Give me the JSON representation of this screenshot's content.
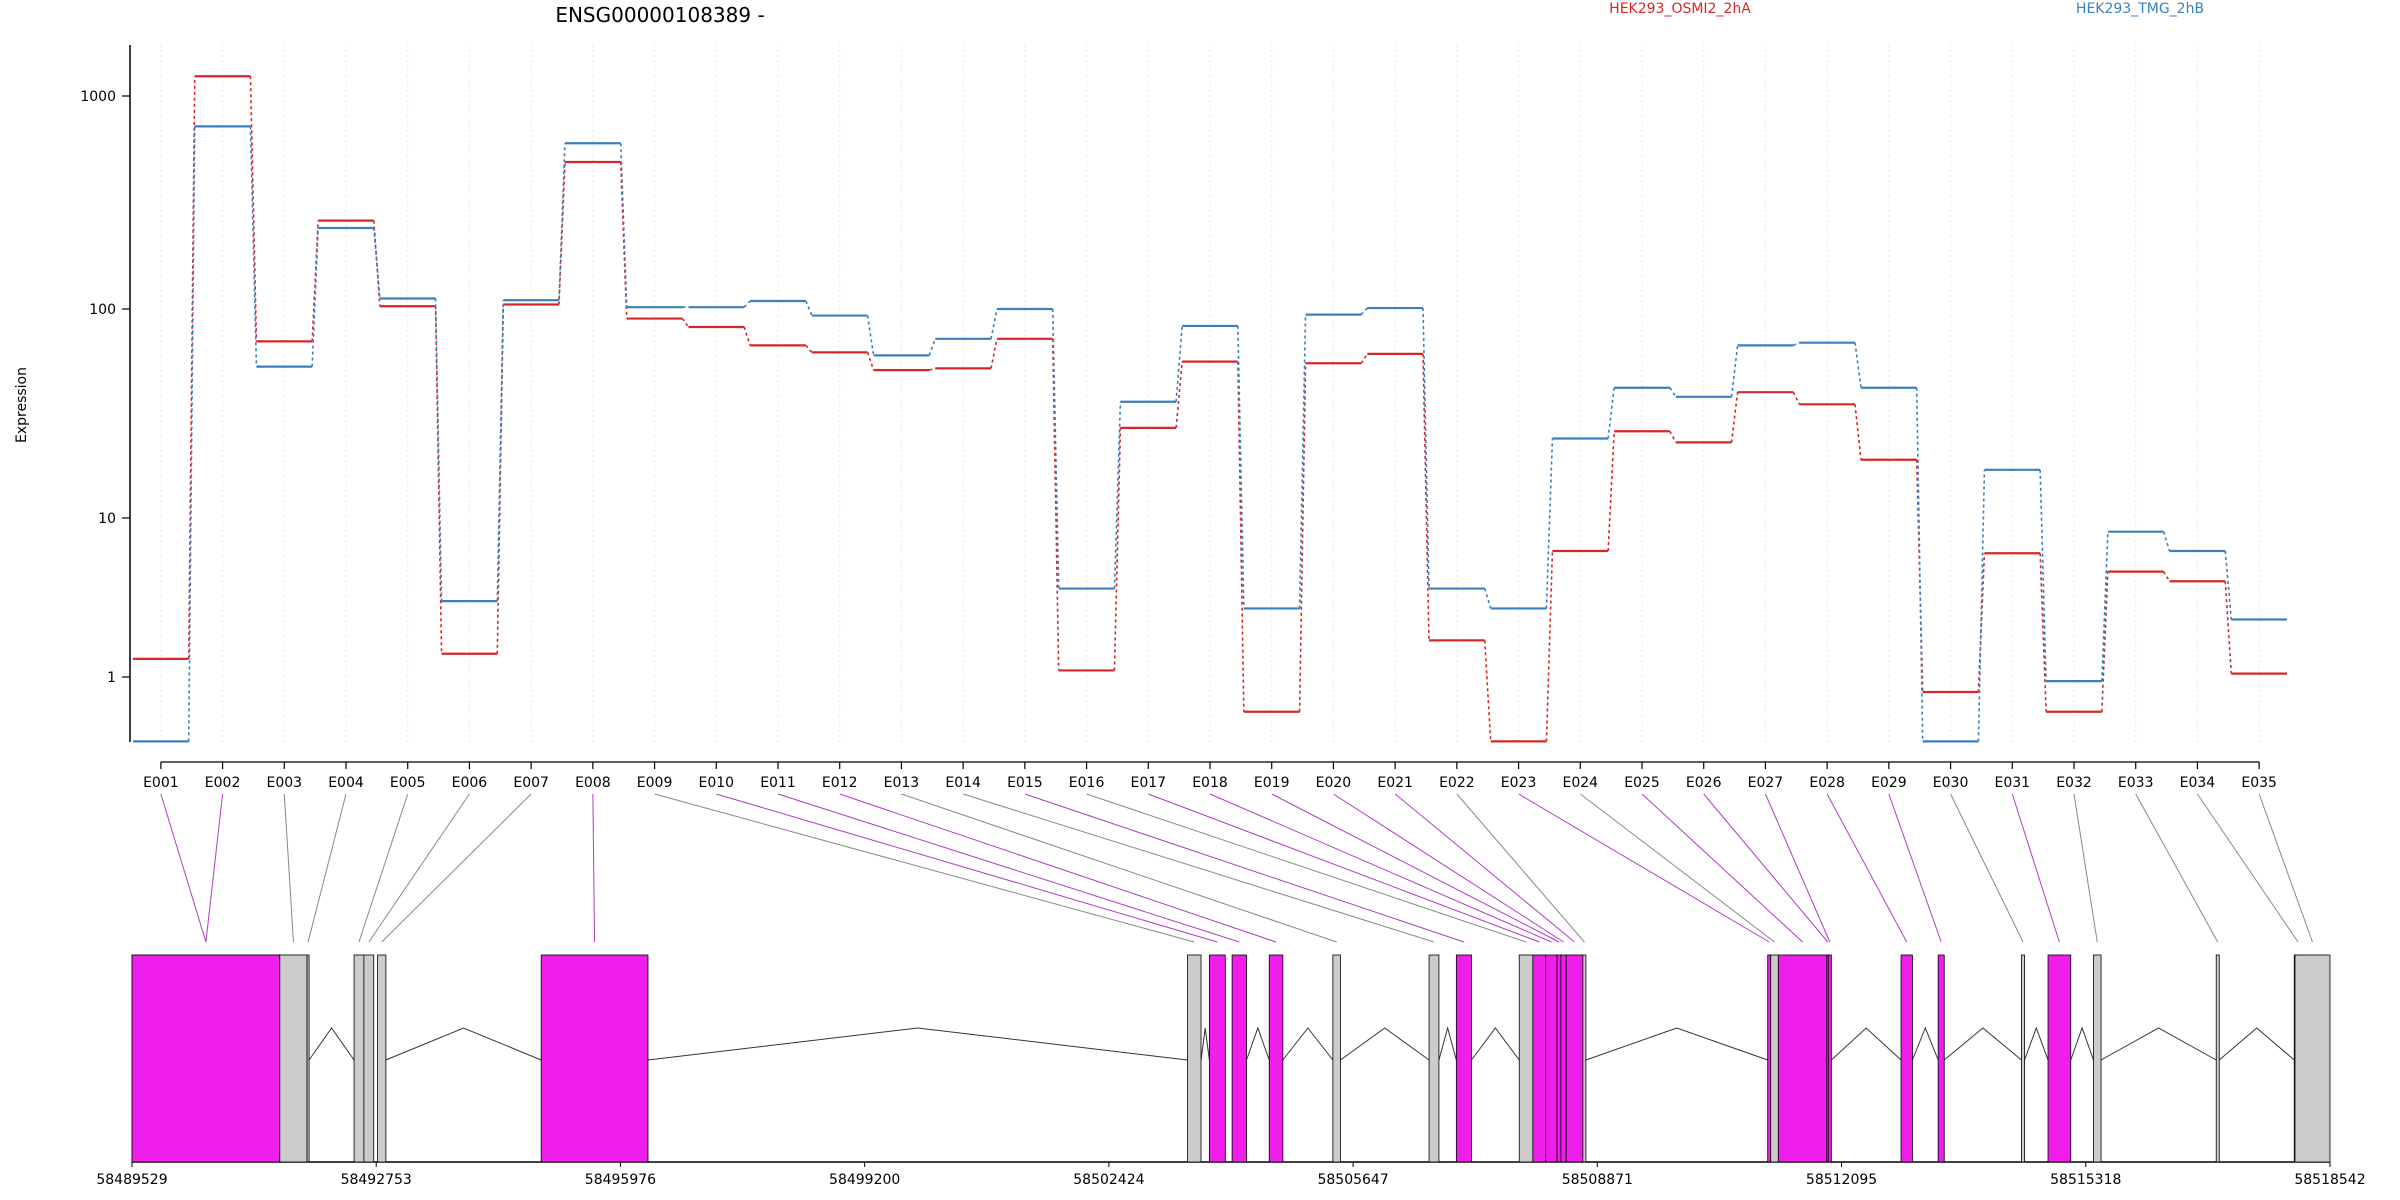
{
  "chart_data": {
    "type": "line",
    "title": "ENSG00000108389 -",
    "ylabel": "Expression",
    "y_scale": "log",
    "y_ticks": [
      "1",
      "10",
      "100",
      "1000"
    ],
    "x_scale": "categorical",
    "grid": "vertical dotted lines at each exon",
    "legend_placement": "top",
    "categories": [
      "E001",
      "E002",
      "E003",
      "E004",
      "E005",
      "E006",
      "E007",
      "E008",
      "E009",
      "E010",
      "E011",
      "E012",
      "E013",
      "E014",
      "E015",
      "E016",
      "E017",
      "E018",
      "E019",
      "E020",
      "E021",
      "E022",
      "E023",
      "E024",
      "E025",
      "E026",
      "E027",
      "E028",
      "E029",
      "E030",
      "E031",
      "E032",
      "E033",
      "E034",
      "E035"
    ],
    "series": [
      {
        "name": "HEK293_OSMI2_2hA",
        "color": "#d62728",
        "values": [
          1.3,
          1300,
          70,
          260,
          103,
          1.4,
          105,
          490,
          90,
          82,
          67,
          62,
          51,
          52,
          72,
          1.1,
          27,
          56,
          0.65,
          55,
          61,
          1.7,
          0.45,
          6.2,
          26,
          23,
          40,
          35,
          19,
          0.83,
          6.0,
          0.65,
          4.6,
          4.0,
          1.05
        ]
      },
      {
        "name": "HEK293_TMG_2hB",
        "color": "#3a7fbf",
        "values": [
          0.45,
          720,
          53,
          240,
          112,
          3.0,
          110,
          600,
          102,
          102,
          109,
          93,
          60,
          72,
          100,
          3.6,
          36,
          83,
          2.7,
          94,
          101,
          3.6,
          2.7,
          24,
          42,
          38,
          67,
          69,
          42,
          0.45,
          17,
          0.95,
          8.2,
          6.2,
          2.3
        ]
      }
    ],
    "gene_model": {
      "coordinate_ticks": [
        "58489529",
        "58492753",
        "58495976",
        "58499200",
        "58502424",
        "58505647",
        "58508871",
        "58512095",
        "58515318",
        "58518542"
      ],
      "genome_start": 58489529,
      "genome_end": 58518542,
      "exon_fill_highlight": "#f01eeb",
      "exon_fill_plain": "#cccccc",
      "exons": [
        {
          "id": "E001",
          "start": 58489529,
          "end": 58491480,
          "highlight": true
        },
        {
          "id": "E002",
          "start": 58489529,
          "end": 58491480,
          "highlight": true
        },
        {
          "id": "E003",
          "start": 58491480,
          "end": 58491840,
          "highlight": false
        },
        {
          "id": "E004",
          "start": 58491840,
          "end": 58491860,
          "highlight": false
        },
        {
          "id": "E005",
          "start": 58492460,
          "end": 58492590,
          "highlight": false
        },
        {
          "id": "E006",
          "start": 58492590,
          "end": 58492720,
          "highlight": false
        },
        {
          "id": "E007",
          "start": 58492770,
          "end": 58492880,
          "highlight": false
        },
        {
          "id": "E008",
          "start": 58494930,
          "end": 58496340,
          "highlight": true
        },
        {
          "id": "E009",
          "start": 58503460,
          "end": 58503640,
          "highlight": false
        },
        {
          "id": "E010",
          "start": 58503750,
          "end": 58503960,
          "highlight": true
        },
        {
          "id": "E011",
          "start": 58504050,
          "end": 58504240,
          "highlight": true
        },
        {
          "id": "E012",
          "start": 58504540,
          "end": 58504720,
          "highlight": true
        },
        {
          "id": "E013",
          "start": 58505380,
          "end": 58505480,
          "highlight": false
        },
        {
          "id": "E014",
          "start": 58506650,
          "end": 58506780,
          "highlight": false
        },
        {
          "id": "E015",
          "start": 58507010,
          "end": 58507210,
          "highlight": true
        },
        {
          "id": "E016",
          "start": 58507840,
          "end": 58508020,
          "highlight": false
        },
        {
          "id": "E017",
          "start": 58508020,
          "end": 58508190,
          "highlight": true
        },
        {
          "id": "E018",
          "start": 58508190,
          "end": 58508340,
          "highlight": true
        },
        {
          "id": "E019",
          "start": 58508340,
          "end": 58508390,
          "highlight": true
        },
        {
          "id": "E020",
          "start": 58508390,
          "end": 58508460,
          "highlight": true
        },
        {
          "id": "E021",
          "start": 58508460,
          "end": 58508680,
          "highlight": true
        },
        {
          "id": "E022",
          "start": 58508680,
          "end": 58508720,
          "highlight": false
        },
        {
          "id": "E023",
          "start": 58511120,
          "end": 58511160,
          "highlight": true
        },
        {
          "id": "E024",
          "start": 58511160,
          "end": 58511260,
          "highlight": false
        },
        {
          "id": "E025",
          "start": 58511260,
          "end": 58511900,
          "highlight": true
        },
        {
          "id": "E026",
          "start": 58511900,
          "end": 58511920,
          "highlight": true
        },
        {
          "id": "E027",
          "start": 58511920,
          "end": 58511960,
          "highlight": true
        },
        {
          "id": "E028",
          "start": 58512880,
          "end": 58513030,
          "highlight": true
        },
        {
          "id": "E029",
          "start": 58513370,
          "end": 58513450,
          "highlight": true
        },
        {
          "id": "E030",
          "start": 58514470,
          "end": 58514510,
          "highlight": false
        },
        {
          "id": "E031",
          "start": 58514820,
          "end": 58515120,
          "highlight": true
        },
        {
          "id": "E032",
          "start": 58515420,
          "end": 58515520,
          "highlight": false
        },
        {
          "id": "E033",
          "start": 58517040,
          "end": 58517080,
          "highlight": false
        },
        {
          "id": "E034",
          "start": 58518070,
          "end": 58518170,
          "highlight": false
        },
        {
          "id": "E035",
          "start": 58518080,
          "end": 58518542,
          "highlight": false
        }
      ]
    }
  }
}
